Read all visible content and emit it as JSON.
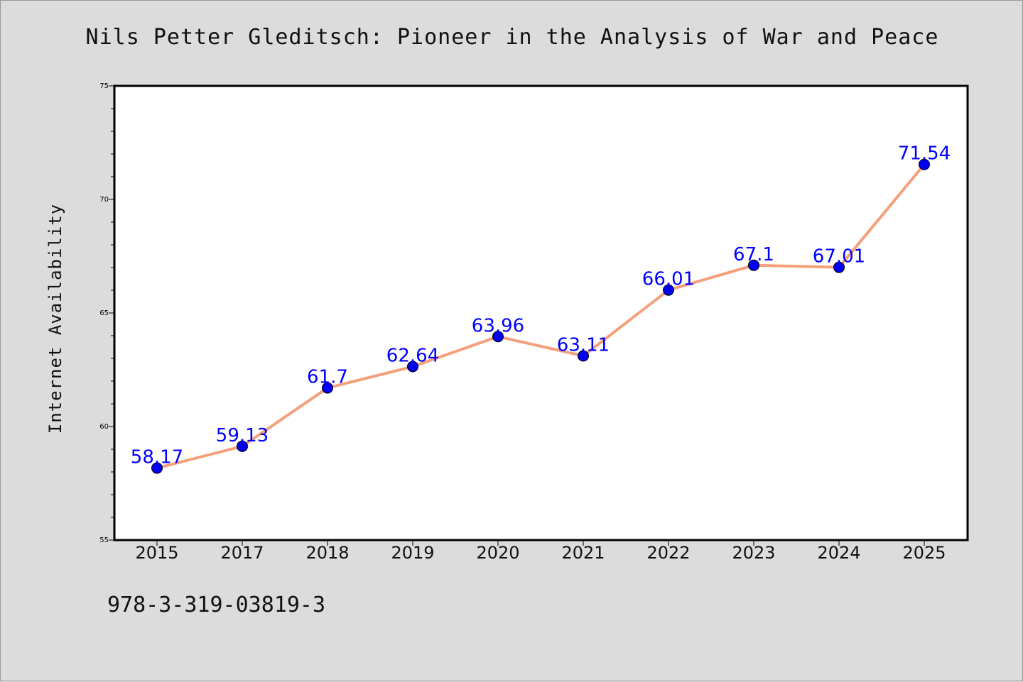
{
  "chart_data": {
    "type": "line",
    "title": "Nils Petter Gleditsch: Pioneer in the Analysis of War and Peace",
    "ylabel": "Internet Availability",
    "xlabel": "",
    "categories": [
      "2015",
      "2017",
      "2018",
      "2019",
      "2020",
      "2021",
      "2022",
      "2023",
      "2024",
      "2025"
    ],
    "series": [
      {
        "values": [
          58.17,
          59.13,
          61.7,
          62.64,
          63.96,
          63.11,
          66.01,
          67.1,
          67.01,
          71.54
        ],
        "labels": [
          "58.17",
          "59.13",
          "61.7",
          "62.64",
          "63.96",
          "63.11",
          "66.01",
          "67.1",
          "67.01",
          "71.54"
        ]
      }
    ],
    "ylim": [
      55,
      75
    ],
    "yticks": [
      "55",
      "60",
      "65",
      "70",
      "75"
    ],
    "grid": false,
    "legend": "none",
    "line_color": "#f4a07c",
    "marker_color": "#0000ee",
    "label_color": "#0000ff"
  },
  "footer_text": "978-3-319-03819-3"
}
